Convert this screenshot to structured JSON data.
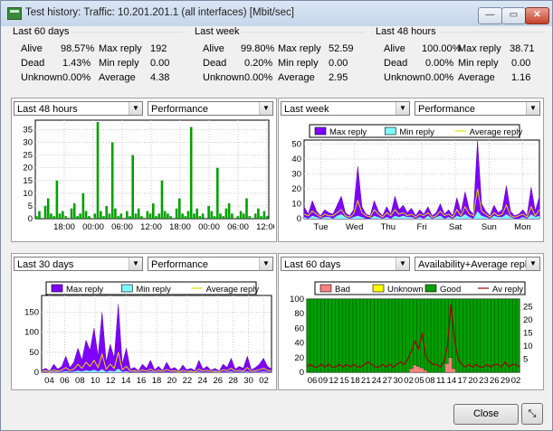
{
  "window": {
    "title": "Test history: Traffic: 10.201.201.1 (all interfaces) [Mbit/sec]",
    "minimize_glyph": "—",
    "maximize_glyph": "▭",
    "close_glyph": "✕",
    "icon": "app-icon"
  },
  "stat_labels": {
    "alive": "Alive",
    "dead": "Dead",
    "unknown": "Unknown",
    "max": "Max reply",
    "min": "Min reply",
    "avg": "Average"
  },
  "stats": [
    {
      "title": "Last 60 days",
      "alive": "98.57%",
      "dead": "1.43%",
      "unknown": "0.00%",
      "max": "192",
      "min": "0.00",
      "avg": "4.38"
    },
    {
      "title": "Last week",
      "alive": "99.80%",
      "dead": "0.20%",
      "unknown": "0.00%",
      "max": "52.59",
      "min": "0.00",
      "avg": "2.95"
    },
    {
      "title": "Last 48 hours",
      "alive": "100.00%",
      "dead": "0.00%",
      "unknown": "0.00%",
      "max": "38.71",
      "min": "0.00",
      "avg": "1.16"
    }
  ],
  "panels": [
    {
      "period": "Last 48 hours",
      "mode": "Performance"
    },
    {
      "period": "Last week",
      "mode": "Performance"
    },
    {
      "period": "Last 30 days",
      "mode": "Performance"
    },
    {
      "period": "Last 60 days",
      "mode": "Availability+Average reply"
    }
  ],
  "buttons": {
    "close": "Close",
    "toggle_icon": "resize-toggle-icon"
  },
  "colors": {
    "max": "#7f00ff",
    "min": "#7fffff",
    "avg": "#e0e000",
    "green": "#00a000",
    "bad": "#ff8080",
    "unknown_yellow": "#ffff00",
    "good": "#00a000",
    "av_reply": "#a00000"
  },
  "chart_data": [
    {
      "type": "bar",
      "title": "",
      "x_ticks": [
        "18:00",
        "00:00",
        "06:00",
        "12:00",
        "18:00",
        "00:00",
        "06:00",
        "12:00"
      ],
      "y_ticks": [
        0,
        5,
        10,
        15,
        20,
        25,
        30,
        35
      ],
      "ylim": [
        0,
        38.71
      ],
      "series": [
        {
          "values": [
            1,
            3,
            0,
            5,
            8,
            2,
            1,
            15,
            2,
            3,
            1,
            0,
            4,
            6,
            1,
            2,
            10,
            3,
            1,
            0,
            2,
            38,
            3,
            1,
            5,
            2,
            30,
            4,
            1,
            2,
            0,
            3,
            1,
            25,
            2,
            4,
            1,
            0,
            3,
            2,
            6,
            1,
            2,
            15,
            3,
            2,
            1,
            0,
            4,
            8,
            2,
            1,
            3,
            36,
            2,
            4,
            1,
            2,
            0,
            5,
            3,
            1,
            20,
            2,
            1,
            4,
            6,
            2,
            0,
            1,
            3,
            2,
            8,
            1,
            0,
            2,
            4,
            1,
            3,
            1
          ]
        }
      ],
      "grid": true
    },
    {
      "type": "area",
      "legend": [
        "Max reply",
        "Min reply",
        "Average reply"
      ],
      "x_ticks": [
        "Tue",
        "Wed",
        "Thu",
        "Fri",
        "Sat",
        "Sun",
        "Mon"
      ],
      "y_ticks": [
        0,
        10,
        20,
        30,
        40,
        50
      ],
      "ylim": [
        0,
        52.59
      ],
      "series": [
        {
          "name": "Max reply",
          "values": [
            8,
            3,
            12,
            5,
            2,
            6,
            4,
            3,
            9,
            15,
            4,
            2,
            6,
            35,
            8,
            3,
            2,
            12,
            5,
            2,
            8,
            3,
            15,
            6,
            9,
            4,
            7,
            2,
            6,
            3,
            8,
            2,
            4,
            10,
            3,
            6,
            2,
            14,
            4,
            18,
            6,
            3,
            52,
            10,
            5,
            2,
            9,
            4,
            6,
            22,
            5,
            2,
            3,
            6,
            2,
            21,
            5,
            15
          ]
        },
        {
          "name": "Min reply",
          "values": [
            1,
            0,
            2,
            1,
            0,
            1,
            1,
            0,
            2,
            3,
            1,
            0,
            1,
            2,
            1,
            0,
            0,
            2,
            1,
            0,
            1,
            0,
            2,
            1,
            2,
            1,
            1,
            0,
            1,
            0,
            2,
            0,
            1,
            2,
            0,
            1,
            0,
            2,
            1,
            3,
            1,
            0,
            5,
            2,
            1,
            0,
            2,
            1,
            1,
            3,
            1,
            0,
            0,
            1,
            0,
            3,
            1,
            2
          ]
        },
        {
          "name": "Average reply",
          "values": [
            3,
            2,
            5,
            3,
            1,
            3,
            2,
            2,
            4,
            6,
            2,
            1,
            3,
            12,
            4,
            2,
            1,
            6,
            3,
            1,
            4,
            2,
            6,
            3,
            4,
            2,
            3,
            1,
            3,
            2,
            4,
            1,
            2,
            5,
            2,
            3,
            1,
            6,
            2,
            8,
            3,
            2,
            20,
            5,
            3,
            1,
            4,
            2,
            3,
            9,
            2,
            1,
            2,
            3,
            1,
            8,
            2,
            6
          ]
        }
      ],
      "grid": true
    },
    {
      "type": "area",
      "legend": [
        "Max reply",
        "Min reply",
        "Average reply"
      ],
      "x_ticks": [
        "04",
        "06",
        "08",
        "10",
        "12",
        "14",
        "16",
        "18",
        "20",
        "22",
        "24",
        "26",
        "28",
        "30",
        "02"
      ],
      "y_ticks": [
        0,
        50,
        100,
        150
      ],
      "ylim": [
        0,
        192
      ],
      "series": [
        {
          "name": "Max reply",
          "values": [
            5,
            10,
            3,
            20,
            8,
            15,
            40,
            12,
            25,
            60,
            30,
            80,
            55,
            110,
            40,
            150,
            25,
            70,
            35,
            170,
            20,
            60,
            8,
            12,
            4,
            20,
            10,
            30,
            6,
            15,
            4,
            25,
            8,
            12,
            3,
            18,
            6,
            10,
            4,
            30,
            8,
            15,
            5,
            10,
            3,
            20,
            12,
            35,
            8,
            15,
            10,
            40,
            6,
            12,
            20,
            35,
            15,
            8
          ]
        },
        {
          "name": "Min reply",
          "values": [
            0,
            1,
            0,
            2,
            1,
            1,
            3,
            1,
            2,
            4,
            2,
            5,
            3,
            6,
            2,
            8,
            1,
            4,
            2,
            9,
            1,
            3,
            0,
            1,
            0,
            1,
            0,
            2,
            0,
            1,
            0,
            1,
            0,
            1,
            0,
            1,
            0,
            1,
            0,
            2,
            0,
            1,
            0,
            1,
            0,
            1,
            1,
            2,
            0,
            1,
            1,
            2,
            0,
            1,
            1,
            2,
            1,
            0
          ]
        },
        {
          "name": "Average reply",
          "values": [
            2,
            4,
            1,
            6,
            3,
            5,
            12,
            4,
            8,
            20,
            10,
            25,
            15,
            30,
            12,
            45,
            8,
            20,
            10,
            50,
            6,
            15,
            3,
            4,
            2,
            6,
            3,
            8,
            2,
            5,
            2,
            7,
            3,
            4,
            1,
            5,
            2,
            3,
            1,
            8,
            3,
            5,
            2,
            3,
            1,
            6,
            4,
            10,
            3,
            5,
            3,
            12,
            2,
            4,
            6,
            10,
            5,
            3
          ]
        }
      ],
      "grid": true
    },
    {
      "type": "bar",
      "legend": [
        "Bad",
        "Unknown",
        "Good",
        "Av reply"
      ],
      "x_ticks": [
        "06",
        "09",
        "12",
        "15",
        "18",
        "21",
        "24",
        "27",
        "30",
        "02",
        "05",
        "08",
        "11",
        "14",
        "17",
        "20",
        "23",
        "26",
        "29",
        "02"
      ],
      "y_ticks_left": [
        0,
        20,
        40,
        60,
        80,
        100
      ],
      "y_ticks_right": [
        5,
        10,
        15,
        20,
        25
      ],
      "ylim_left": [
        0,
        100
      ],
      "ylim_right": [
        0,
        28
      ],
      "series": [
        {
          "name": "Bad",
          "values": [
            0,
            0,
            0,
            0,
            0,
            0,
            0,
            0,
            0,
            0,
            0,
            0,
            0,
            0,
            0,
            0,
            0,
            0,
            0,
            0,
            0,
            0,
            0,
            0,
            0,
            0,
            0,
            0,
            0,
            5,
            10,
            8,
            6,
            3,
            0,
            0,
            0,
            0,
            0,
            12,
            20,
            5,
            0,
            0,
            0,
            0,
            0,
            0,
            0,
            0,
            0,
            0,
            0,
            0,
            0,
            0,
            0,
            0,
            0,
            0
          ]
        },
        {
          "name": "Unknown",
          "values": [
            0,
            0,
            0,
            0,
            0,
            0,
            0,
            0,
            0,
            0,
            0,
            0,
            0,
            0,
            0,
            0,
            0,
            0,
            0,
            0,
            0,
            0,
            0,
            0,
            0,
            0,
            0,
            0,
            0,
            0,
            0,
            0,
            0,
            0,
            0,
            0,
            0,
            0,
            0,
            0,
            0,
            0,
            0,
            0,
            0,
            0,
            0,
            0,
            0,
            0,
            0,
            0,
            0,
            0,
            0,
            0,
            0,
            0,
            0,
            0
          ]
        },
        {
          "name": "Good",
          "values": [
            100,
            100,
            100,
            100,
            100,
            100,
            100,
            100,
            100,
            100,
            100,
            100,
            100,
            100,
            100,
            100,
            100,
            100,
            100,
            100,
            100,
            100,
            100,
            100,
            100,
            100,
            100,
            100,
            100,
            95,
            90,
            92,
            94,
            97,
            100,
            100,
            100,
            100,
            100,
            88,
            80,
            95,
            100,
            100,
            100,
            100,
            100,
            100,
            100,
            100,
            100,
            100,
            100,
            100,
            100,
            100,
            100,
            100,
            100,
            100
          ]
        },
        {
          "name": "Av reply",
          "values": [
            2,
            3,
            2,
            2,
            3,
            2,
            3,
            2,
            2,
            3,
            2,
            3,
            2,
            3,
            2,
            2,
            3,
            4,
            3,
            2,
            2,
            3,
            2,
            3,
            2,
            3,
            4,
            3,
            5,
            8,
            12,
            9,
            15,
            6,
            4,
            3,
            3,
            2,
            4,
            10,
            26,
            12,
            5,
            3,
            2,
            3,
            2,
            3,
            2,
            2,
            3,
            2,
            3,
            3,
            2,
            4,
            2,
            3,
            3,
            2
          ]
        }
      ],
      "grid": true
    }
  ]
}
